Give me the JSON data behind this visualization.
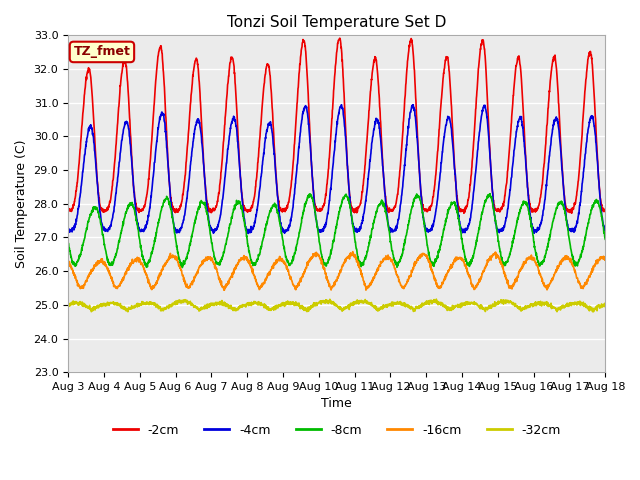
{
  "title": "Tonzi Soil Temperature Set D",
  "xlabel": "Time",
  "ylabel": "Soil Temperature (C)",
  "ylim": [
    23.0,
    33.0
  ],
  "yticks": [
    23.0,
    24.0,
    25.0,
    26.0,
    27.0,
    28.0,
    29.0,
    30.0,
    31.0,
    32.0,
    33.0
  ],
  "xtick_labels": [
    "Aug 3",
    "Aug 4",
    "Aug 5",
    "Aug 6",
    "Aug 7",
    "Aug 8",
    "Aug 9",
    "Aug 10",
    "Aug 11",
    "Aug 12",
    "Aug 13",
    "Aug 14",
    "Aug 15",
    "Aug 16",
    "Aug 17",
    "Aug 18"
  ],
  "annotation": "TZ_fmet",
  "annotation_bg": "#ffffcc",
  "annotation_border": "#cc0000",
  "plot_bg": "#ebebeb",
  "fig_bg": "#ffffff",
  "colors": {
    "-2cm": "#ee0000",
    "-4cm": "#0000dd",
    "-8cm": "#00bb00",
    "-16cm": "#ff8800",
    "-32cm": "#cccc00"
  },
  "legend_labels": [
    "-2cm",
    "-4cm",
    "-8cm",
    "-16cm",
    "-32cm"
  ],
  "n_days": 15,
  "n_per_day": 144,
  "amplitudes": {
    "-2cm": 4.2,
    "-4cm": 3.1,
    "-8cm": 1.7,
    "-16cm": 0.8,
    "-32cm": 0.2
  },
  "base_temps": {
    "-2cm": 27.8,
    "-4cm": 27.2,
    "-8cm": 26.2,
    "-16cm": 25.5,
    "-32cm": 24.85
  },
  "phase_delays": {
    "-2cm": 0.0,
    "-4cm": 0.05,
    "-8cm": 0.18,
    "-16cm": 0.35,
    "-32cm": 0.65
  },
  "peak_sharpness": {
    "-2cm": 3.5,
    "-4cm": 3.0,
    "-8cm": 2.0,
    "-16cm": 1.5,
    "-32cm": 1.0
  },
  "peak_variations": {
    "-2cm": [
      0.0,
      0.5,
      1.3,
      0.6,
      0.7,
      0.3,
      1.7,
      1.8,
      0.6,
      1.7,
      0.7,
      1.7,
      0.7,
      0.7,
      1.0
    ],
    "-4cm": [
      0.0,
      0.3,
      0.8,
      0.4,
      0.5,
      0.2,
      1.2,
      1.2,
      0.4,
      1.2,
      0.5,
      1.2,
      0.5,
      0.5,
      0.6
    ],
    "-8cm": [
      0.0,
      0.2,
      0.5,
      0.3,
      0.3,
      0.1,
      0.7,
      0.7,
      0.3,
      0.7,
      0.3,
      0.7,
      0.3,
      0.3,
      0.4
    ],
    "-16cm": [
      0.0,
      0.1,
      0.3,
      0.2,
      0.2,
      0.1,
      0.4,
      0.4,
      0.2,
      0.4,
      0.2,
      0.4,
      0.2,
      0.2,
      0.2
    ],
    "-32cm": [
      0.0,
      0.0,
      0.1,
      0.0,
      0.0,
      0.0,
      0.1,
      0.1,
      0.0,
      0.1,
      0.0,
      0.1,
      0.0,
      0.0,
      0.0
    ]
  }
}
